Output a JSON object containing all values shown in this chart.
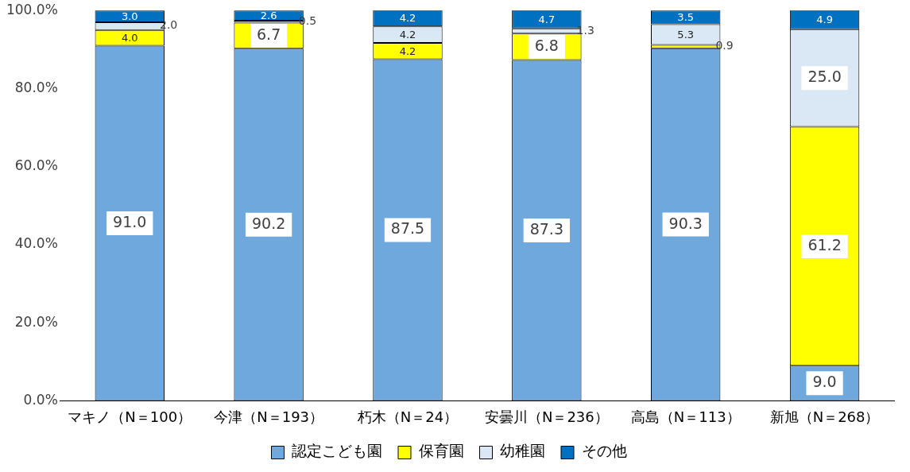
{
  "chart_data": {
    "type": "bar",
    "stacked": true,
    "categories": [
      "マキノ（N＝100）",
      "今津（N＝193）",
      "朽木（N＝24）",
      "安曇川（N＝236）",
      "高島（N＝113）",
      "新旭（N＝268）"
    ],
    "series": [
      {
        "name": "認定こども園",
        "color": "#6fa8dc",
        "values": [
          91.0,
          90.2,
          87.5,
          87.3,
          90.3,
          9.0
        ],
        "value_labels": [
          "91.0",
          "90.2",
          "87.5",
          "87.3",
          "90.3",
          "9.0"
        ]
      },
      {
        "name": "保育園",
        "color": "#ffff00",
        "values": [
          4.0,
          6.7,
          4.2,
          6.8,
          0.9,
          61.2
        ],
        "value_labels": [
          "4.0",
          "6.7",
          "4.2",
          "6.8",
          "0.9",
          "61.2"
        ]
      },
      {
        "name": "幼稚園",
        "color": "#dae8f5",
        "values": [
          2.0,
          0.5,
          4.2,
          1.3,
          5.3,
          25.0
        ],
        "value_labels": [
          "2.0",
          "0.5",
          "4.2",
          "1.3",
          "5.3",
          "25.0"
        ]
      },
      {
        "name": "その他",
        "color": "#0070c0",
        "values": [
          3.0,
          2.6,
          4.2,
          4.7,
          3.5,
          4.9
        ],
        "value_labels": [
          "3.0",
          "2.6",
          "4.2",
          "4.7",
          "3.5",
          "4.9"
        ]
      }
    ],
    "ylim": [
      0,
      100
    ],
    "yticks": [
      {
        "value": 0,
        "label": "0.0%"
      },
      {
        "value": 20,
        "label": "20.0%"
      },
      {
        "value": 40,
        "label": "40.0%"
      },
      {
        "value": 60,
        "label": "60.0%"
      },
      {
        "value": 80,
        "label": "80.0%"
      },
      {
        "value": 100,
        "label": "100.0%"
      }
    ],
    "legend": "bottom"
  }
}
